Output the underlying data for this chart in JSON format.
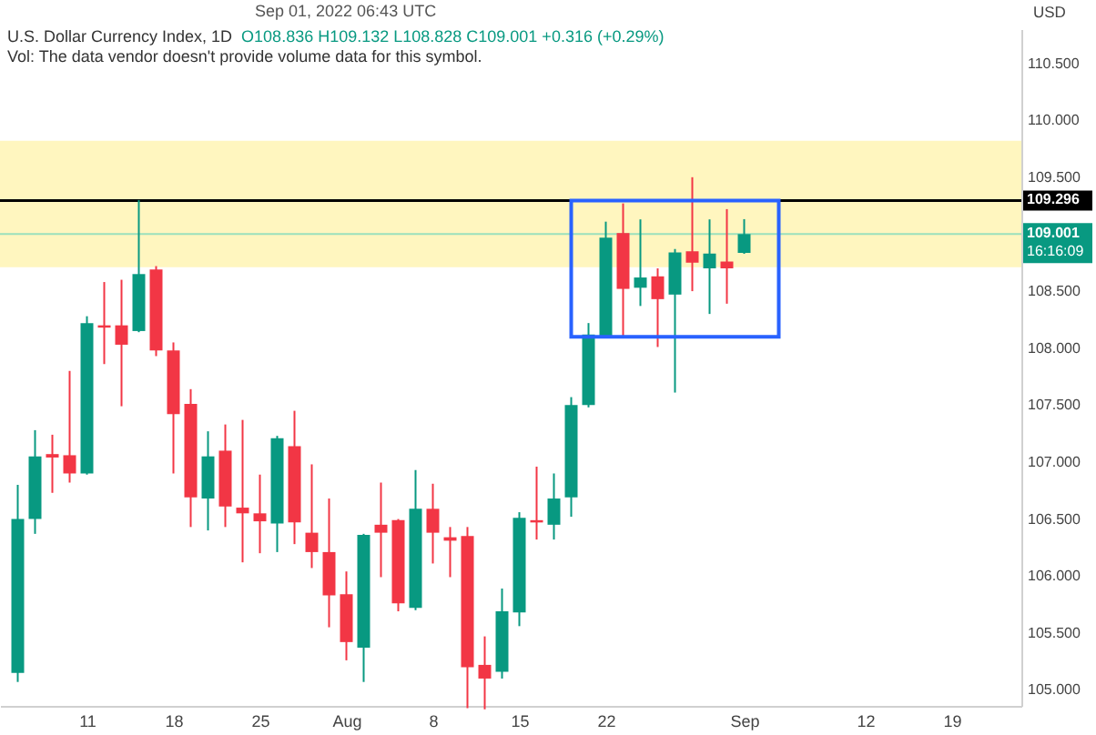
{
  "chart_data": {
    "type": "candlestick",
    "title": "U.S. Dollar Currency Index, 1D",
    "ylabel": "USD",
    "annotations": [
      "O108.836 H109.132 L108.828 C109.001 +0.316 (+0.29%)",
      "Vol: The data vendor doesn't provide volume data for this symbol.",
      "Sep 01, 2022 06:43 UTC",
      "16:16:09"
    ],
    "categories": [
      null,
      null,
      null,
      null,
      "11",
      null,
      null,
      null,
      null,
      "18",
      null,
      null,
      null,
      null,
      "25",
      null,
      null,
      null,
      null,
      "Aug",
      null,
      null,
      null,
      null,
      "8",
      null,
      null,
      null,
      null,
      "15",
      null,
      null,
      null,
      null,
      "22",
      null,
      null,
      null,
      null,
      null,
      null,
      null,
      "Sep",
      null,
      null,
      null,
      null,
      null,
      null,
      "12",
      null,
      null,
      null,
      null,
      "19",
      null,
      null,
      null
    ],
    "ohlc": [
      [
        105.15,
        106.8,
        105.07,
        106.5
      ],
      [
        106.5,
        107.28,
        106.37,
        107.05
      ],
      [
        107.07,
        107.24,
        106.73,
        107.04
      ],
      [
        107.06,
        107.8,
        106.82,
        106.9
      ],
      [
        106.9,
        108.28,
        106.89,
        108.22
      ],
      [
        108.2,
        108.58,
        107.86,
        108.18
      ],
      [
        108.2,
        108.6,
        107.49,
        108.03
      ],
      [
        108.15,
        109.3,
        108.14,
        108.65
      ],
      [
        108.69,
        108.72,
        107.93,
        107.98
      ],
      [
        107.98,
        108.05,
        106.9,
        107.42
      ],
      [
        107.51,
        107.64,
        106.43,
        106.69
      ],
      [
        106.68,
        107.27,
        106.4,
        107.05
      ],
      [
        107.1,
        107.33,
        106.43,
        106.61
      ],
      [
        106.6,
        107.37,
        106.12,
        106.55
      ],
      [
        106.55,
        106.89,
        106.2,
        106.48
      ],
      [
        106.46,
        107.23,
        106.21,
        107.21
      ],
      [
        107.14,
        107.45,
        106.28,
        106.47
      ],
      [
        106.38,
        106.98,
        106.07,
        106.21
      ],
      [
        106.21,
        106.68,
        105.55,
        105.83
      ],
      [
        105.84,
        106.04,
        105.26,
        105.42
      ],
      [
        105.37,
        106.37,
        105.07,
        106.36
      ],
      [
        106.45,
        106.82,
        105.99,
        106.38
      ],
      [
        106.49,
        106.5,
        105.69,
        105.76
      ],
      [
        105.72,
        106.93,
        105.7,
        106.59
      ],
      [
        106.59,
        106.81,
        106.11,
        106.38
      ],
      [
        106.34,
        106.43,
        105.99,
        106.31
      ],
      [
        106.35,
        106.43,
        104.84,
        105.2
      ],
      [
        105.22,
        105.47,
        104.83,
        105.1
      ],
      [
        105.16,
        105.89,
        105.1,
        105.69
      ],
      [
        105.68,
        106.56,
        105.56,
        106.51
      ],
      [
        106.49,
        106.96,
        106.32,
        106.47
      ],
      [
        106.45,
        106.9,
        106.32,
        106.68
      ],
      [
        106.69,
        107.57,
        106.52,
        107.5
      ],
      [
        107.5,
        108.22,
        107.48,
        108.12
      ],
      [
        108.1,
        109.11,
        108.1,
        108.97
      ],
      [
        109.01,
        109.27,
        108.1,
        108.52
      ],
      [
        108.53,
        109.13,
        108.37,
        108.62
      ],
      [
        108.63,
        108.7,
        108.01,
        108.43
      ],
      [
        108.47,
        108.87,
        107.61,
        108.84
      ],
      [
        108.85,
        109.5,
        108.5,
        108.75
      ],
      [
        108.7,
        109.13,
        108.3,
        108.83
      ],
      [
        108.76,
        109.22,
        108.39,
        108.7
      ],
      [
        108.836,
        109.132,
        108.828,
        109.001
      ],
      null,
      null,
      null,
      null,
      null,
      null,
      null,
      null,
      null,
      null,
      null,
      null,
      null,
      null,
      null
    ],
    "ylim": [
      104.86,
      110.8
    ],
    "yticks": [
      {
        "value": 105,
        "label": "105.000"
      },
      {
        "value": 105.5,
        "label": "105.500"
      },
      {
        "value": 106,
        "label": "106.000"
      },
      {
        "value": 106.5,
        "label": "106.500"
      },
      {
        "value": 107,
        "label": "107.000"
      },
      {
        "value": 107.5,
        "label": "107.500"
      },
      {
        "value": 108,
        "label": "108.000"
      },
      {
        "value": 108.5,
        "label": "108.500"
      },
      {
        "value": 109.5,
        "label": "109.500"
      },
      {
        "value": 110,
        "label": "110.000"
      },
      {
        "value": 110.5,
        "label": "110.500"
      }
    ],
    "bands": [
      {
        "axis": "y",
        "from": 108.71,
        "to": 109.82,
        "color": "#fff6bf"
      }
    ],
    "ref_lines": [
      {
        "axis": "y",
        "value": 109.296,
        "label": "109.296",
        "color": "#000000"
      },
      {
        "axis": "y",
        "value": 109.001,
        "label": "109.001",
        "color": "#9be0bd"
      }
    ]
  }
}
